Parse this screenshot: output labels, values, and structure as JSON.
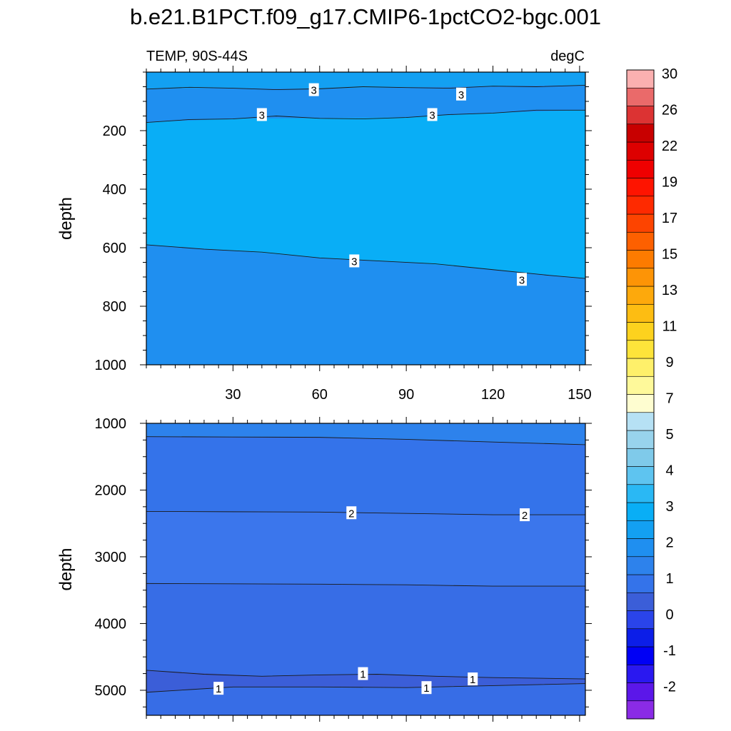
{
  "title": "b.e21.B1PCT.f09_g17.CMIP6-1pctCO2-bgc.001",
  "colorbar": {
    "colors": [
      "#8a2be6",
      "#5b17e9",
      "#2a18f0",
      "#0000f5",
      "#0c1ee8",
      "#2a44ea",
      "#3b5ed8",
      "#3473ea",
      "#2d82ec",
      "#1f8ff0",
      "#13a0f2",
      "#09aef6",
      "#2ab8f4",
      "#5ec4f0",
      "#7fcaea",
      "#98d3ec",
      "#b6e1f4",
      "#fefdd0",
      "#fef99a",
      "#fef06a",
      "#fde43a",
      "#fdd21e",
      "#fdbd12",
      "#fda90c",
      "#fd9406",
      "#fd7b00",
      "#fd6000",
      "#fd4400",
      "#fe2a00",
      "#fe1400",
      "#ef0000",
      "#dd0000",
      "#c80000",
      "#dc3333",
      "#ea6a6a",
      "#fbb0b0"
    ],
    "labels": [
      "-2",
      "-1",
      "0",
      "1",
      "2",
      "3",
      "4",
      "5",
      "7",
      "9",
      "11",
      "13",
      "15",
      "17",
      "19",
      "22",
      "26",
      "30"
    ]
  },
  "panels": [
    {
      "id": "upper",
      "left_label": "TEMP, 90S-44S",
      "right_label": "degC",
      "ylabel": "depth",
      "xlim": [
        0,
        152
      ],
      "ylim": [
        1000,
        0
      ],
      "xticks": [
        30,
        60,
        90,
        120,
        150
      ],
      "xtick_labels": [
        "30",
        "60",
        "90",
        "120",
        "150"
      ],
      "yticks": [
        200,
        400,
        600,
        800,
        1000
      ],
      "ytick_labels": [
        "200",
        "400",
        "600",
        "800",
        "1000"
      ],
      "regions": [
        {
          "color": "#13a0f2",
          "top": [
            [
              0,
              0
            ],
            [
              152,
              0
            ]
          ],
          "bottom": [
            [
              0,
              58
            ],
            [
              30,
              55
            ],
            [
              60,
              57
            ],
            [
              90,
              53
            ],
            [
              120,
              48
            ],
            [
              152,
              45
            ]
          ]
        },
        {
          "color": "#1f8ff0",
          "top": [
            [
              0,
              58
            ],
            [
              30,
              55
            ],
            [
              60,
              57
            ],
            [
              90,
              53
            ],
            [
              120,
              48
            ],
            [
              152,
              45
            ]
          ],
          "bottom": [
            [
              0,
              172
            ],
            [
              30,
              160
            ],
            [
              60,
              158
            ],
            [
              90,
              155
            ],
            [
              120,
              140
            ],
            [
              152,
              130
            ]
          ]
        },
        {
          "color": "#09aef6",
          "top": [
            [
              0,
              172
            ],
            [
              30,
              160
            ],
            [
              60,
              158
            ],
            [
              90,
              155
            ],
            [
              120,
              140
            ],
            [
              152,
              130
            ]
          ],
          "bottom": [
            [
              0,
              590
            ],
            [
              30,
              610
            ],
            [
              60,
              635
            ],
            [
              90,
              650
            ],
            [
              120,
              675
            ],
            [
              152,
              705
            ]
          ]
        },
        {
          "color": "#1f8ff0",
          "top": [
            [
              0,
              590
            ],
            [
              30,
              610
            ],
            [
              60,
              635
            ],
            [
              90,
              650
            ],
            [
              120,
              675
            ],
            [
              152,
              705
            ]
          ],
          "bottom": [
            [
              0,
              1000
            ],
            [
              152,
              1000
            ]
          ]
        }
      ],
      "contours": [
        {
          "points": [
            [
              0,
              58
            ],
            [
              15,
              52
            ],
            [
              30,
              55
            ],
            [
              45,
              60
            ],
            [
              60,
              57
            ],
            [
              75,
              50
            ],
            [
              90,
              53
            ],
            [
              105,
              55
            ],
            [
              120,
              48
            ],
            [
              135,
              50
            ],
            [
              152,
              45
            ]
          ],
          "labels": [
            {
              "x": 58,
              "y": 60,
              "text": "3"
            },
            {
              "x": 109,
              "y": 75,
              "text": "3"
            }
          ]
        },
        {
          "points": [
            [
              0,
              172
            ],
            [
              15,
              162
            ],
            [
              30,
              160
            ],
            [
              45,
              150
            ],
            [
              60,
              158
            ],
            [
              75,
              160
            ],
            [
              90,
              155
            ],
            [
              105,
              145
            ],
            [
              120,
              140
            ],
            [
              135,
              130
            ],
            [
              152,
              130
            ]
          ],
          "labels": [
            {
              "x": 40,
              "y": 145,
              "text": "3"
            },
            {
              "x": 99,
              "y": 145,
              "text": "3"
            }
          ]
        },
        {
          "points": [
            [
              0,
              590
            ],
            [
              20,
              605
            ],
            [
              40,
              615
            ],
            [
              60,
              635
            ],
            [
              80,
              645
            ],
            [
              100,
              655
            ],
            [
              120,
              675
            ],
            [
              140,
              695
            ],
            [
              152,
              705
            ]
          ],
          "labels": [
            {
              "x": 72,
              "y": 645,
              "text": "3"
            },
            {
              "x": 130,
              "y": 708,
              "text": "3"
            }
          ]
        }
      ]
    },
    {
      "id": "lower",
      "left_label": "",
      "right_label": "",
      "ylabel": "depth",
      "xlim": [
        0,
        152
      ],
      "ylim": [
        5375,
        1000
      ],
      "xticks": [
        30,
        60,
        90,
        120,
        150
      ],
      "xtick_labels": [],
      "yticks": [
        1000,
        2000,
        3000,
        4000,
        5000
      ],
      "ytick_labels": [
        "1000",
        "2000",
        "3000",
        "4000",
        "5000"
      ],
      "regions": [
        {
          "color": "#2d82ec",
          "top": [
            [
              0,
              1000
            ],
            [
              152,
              1000
            ]
          ],
          "bottom": [
            [
              0,
              1200
            ],
            [
              60,
              1210
            ],
            [
              120,
              1280
            ],
            [
              152,
              1320
            ]
          ]
        },
        {
          "color": "#3473ea",
          "top": [
            [
              0,
              1200
            ],
            [
              60,
              1210
            ],
            [
              120,
              1280
            ],
            [
              152,
              1320
            ]
          ],
          "bottom": [
            [
              0,
              2320
            ],
            [
              60,
              2330
            ],
            [
              120,
              2370
            ],
            [
              152,
              2370
            ]
          ]
        },
        {
          "color": "#3b76ec",
          "top": [
            [
              0,
              2320
            ],
            [
              60,
              2330
            ],
            [
              120,
              2370
            ],
            [
              152,
              2370
            ]
          ],
          "bottom": [
            [
              0,
              3400
            ],
            [
              60,
              3410
            ],
            [
              120,
              3440
            ],
            [
              152,
              3440
            ]
          ]
        },
        {
          "color": "#376de6",
          "top": [
            [
              0,
              3400
            ],
            [
              60,
              3410
            ],
            [
              120,
              3440
            ],
            [
              152,
              3440
            ]
          ],
          "bottom": [
            [
              0,
              4700
            ],
            [
              40,
              4790
            ],
            [
              80,
              4760
            ],
            [
              120,
              4810
            ],
            [
              152,
              4830
            ]
          ]
        },
        {
          "color": "#3b5ed8",
          "top": [
            [
              0,
              4700
            ],
            [
              40,
              4790
            ],
            [
              80,
              4760
            ],
            [
              120,
              4810
            ],
            [
              152,
              4830
            ]
          ],
          "bottom": [
            [
              0,
              5030
            ],
            [
              30,
              4950
            ],
            [
              60,
              4950
            ],
            [
              90,
              4960
            ],
            [
              120,
              4930
            ],
            [
              152,
              4900
            ]
          ]
        },
        {
          "color": "#376de6",
          "top": [
            [
              0,
              5030
            ],
            [
              30,
              4950
            ],
            [
              60,
              4950
            ],
            [
              90,
              4960
            ],
            [
              120,
              4930
            ],
            [
              152,
              4900
            ]
          ],
          "bottom": [
            [
              0,
              5375
            ],
            [
              152,
              5375
            ]
          ]
        }
      ],
      "contours": [
        {
          "points": [
            [
              0,
              1200
            ],
            [
              30,
              1205
            ],
            [
              60,
              1210
            ],
            [
              90,
              1240
            ],
            [
              120,
              1280
            ],
            [
              152,
              1320
            ]
          ],
          "labels": []
        },
        {
          "points": [
            [
              0,
              2320
            ],
            [
              30,
              2325
            ],
            [
              60,
              2330
            ],
            [
              90,
              2350
            ],
            [
              120,
              2370
            ],
            [
              152,
              2370
            ]
          ],
          "labels": [
            {
              "x": 71,
              "y": 2340,
              "text": "2"
            },
            {
              "x": 131,
              "y": 2370,
              "text": "2"
            }
          ]
        },
        {
          "points": [
            [
              0,
              3400
            ],
            [
              30,
              3405
            ],
            [
              60,
              3410
            ],
            [
              90,
              3420
            ],
            [
              120,
              3440
            ],
            [
              152,
              3440
            ]
          ],
          "labels": []
        },
        {
          "points": [
            [
              0,
              4700
            ],
            [
              20,
              4760
            ],
            [
              40,
              4790
            ],
            [
              60,
              4770
            ],
            [
              80,
              4760
            ],
            [
              100,
              4790
            ],
            [
              120,
              4810
            ],
            [
              152,
              4830
            ]
          ],
          "labels": [
            {
              "x": 75,
              "y": 4750,
              "text": "1"
            },
            {
              "x": 113,
              "y": 4830,
              "text": "1"
            }
          ]
        },
        {
          "points": [
            [
              0,
              5030
            ],
            [
              15,
              4990
            ],
            [
              30,
              4950
            ],
            [
              60,
              4950
            ],
            [
              90,
              4960
            ],
            [
              120,
              4930
            ],
            [
              152,
              4900
            ]
          ],
          "labels": [
            {
              "x": 25,
              "y": 4970,
              "text": "1"
            },
            {
              "x": 97,
              "y": 4960,
              "text": "1"
            }
          ]
        }
      ]
    }
  ]
}
